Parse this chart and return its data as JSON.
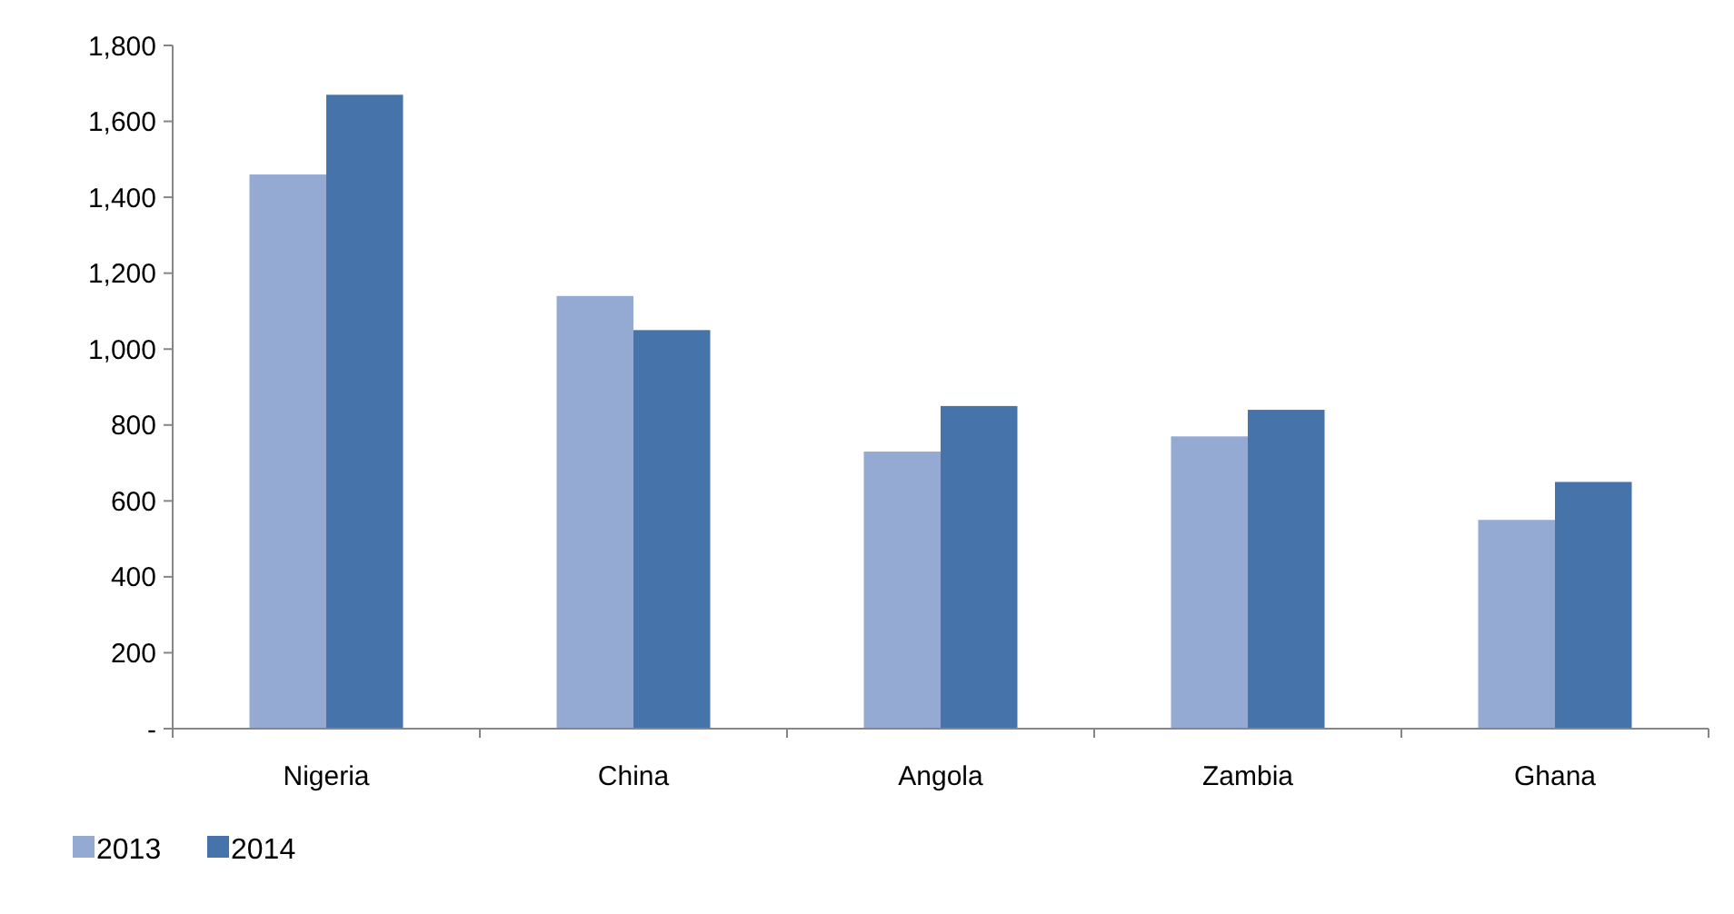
{
  "chart_data": {
    "type": "bar",
    "categories": [
      "Nigeria",
      "China",
      "Angola",
      "Zambia",
      "Ghana"
    ],
    "series": [
      {
        "name": "2013",
        "color": "#95aad3",
        "values": [
          1460,
          1140,
          730,
          770,
          550
        ]
      },
      {
        "name": "2014",
        "color": "#4673a9",
        "values": [
          1670,
          1050,
          850,
          840,
          650
        ]
      }
    ],
    "ylim": [
      0,
      1800
    ],
    "yticks": [
      {
        "value": 0,
        "label": "-"
      },
      200,
      400,
      600,
      800,
      {
        "value": 1000,
        "label": "1,000"
      },
      {
        "value": 1200,
        "label": "1,200"
      },
      {
        "value": 1400,
        "label": "1,400"
      },
      {
        "value": 1600,
        "label": "1,600"
      },
      {
        "value": 1800,
        "label": "1,800"
      }
    ],
    "grid": false,
    "legend": "bottom left"
  }
}
